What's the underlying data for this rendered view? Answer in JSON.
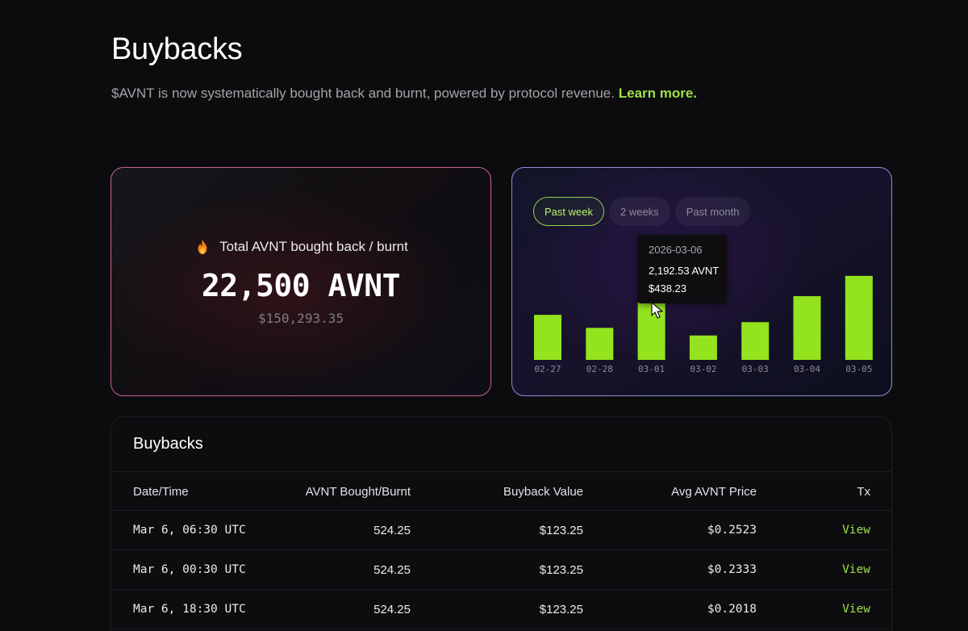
{
  "header": {
    "title": "Buybacks",
    "subtitle": "$AVNT is now systematically bought back and burnt, powered by protocol revenue.",
    "learn_more": "Learn more."
  },
  "total_card": {
    "icon": "flame-icon",
    "label": "Total AVNT bought back / burnt",
    "value": "22,500 AVNT",
    "usd_value": "$150,293.35"
  },
  "chart_card": {
    "tabs": [
      {
        "label": "Past week",
        "active": true
      },
      {
        "label": "2 weeks",
        "active": false
      },
      {
        "label": "Past month",
        "active": false
      }
    ],
    "tooltip": {
      "date": "2026-03-06",
      "avnt": "2,192.53 AVNT",
      "usd": "$438.23"
    }
  },
  "chart_data": {
    "type": "bar",
    "categories": [
      "02-27",
      "02-28",
      "03-01",
      "03-02",
      "03-03",
      "03-04",
      "03-05"
    ],
    "values": [
      1420,
      1010,
      1820,
      770,
      1190,
      2010,
      2650
    ],
    "bar_color": "#94e31f",
    "ylim": [
      0,
      2800
    ]
  },
  "table": {
    "title": "Buybacks",
    "columns": [
      "Date/Time",
      "AVNT Bought/Burnt",
      "Buyback Value",
      "Avg AVNT Price",
      "Tx"
    ],
    "rows": [
      {
        "datetime": "Mar 6, 06:30 UTC",
        "avnt": "524.25",
        "value": "$123.25",
        "price": "$0.2523",
        "tx": "View"
      },
      {
        "datetime": "Mar 6, 00:30 UTC",
        "avnt": "524.25",
        "value": "$123.25",
        "price": "$0.2333",
        "tx": "View"
      },
      {
        "datetime": "Mar 6, 18:30 UTC",
        "avnt": "524.25",
        "value": "$123.25",
        "price": "$0.2018",
        "tx": "View"
      }
    ]
  },
  "colors": {
    "accent": "#9ee046",
    "card1_border": "#c4638f",
    "card2_border": "#8a90d6"
  }
}
